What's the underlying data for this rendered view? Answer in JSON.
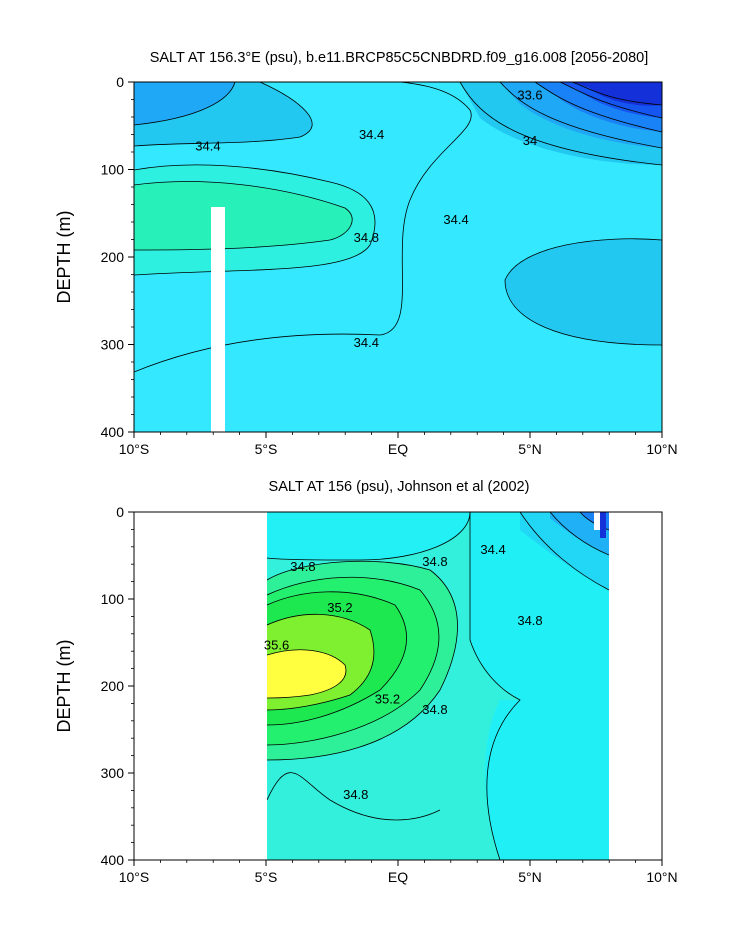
{
  "chart_data": [
    {
      "type": "contour",
      "title": "SALT AT 156.3°E (psu), b.e11.BRCP85C5CNBDRD.f09_g16.008 [2056-2080]",
      "ylabel": "DEPTH (m)",
      "xlabel": "",
      "x_ticks": [
        "10°S",
        "5°S",
        "EQ",
        "5°N",
        "10°N"
      ],
      "x_tick_values": [
        -10,
        -5,
        0,
        5,
        10
      ],
      "y_ticks": [
        "0",
        "100",
        "200",
        "300",
        "400"
      ],
      "y_tick_values": [
        0,
        100,
        200,
        300,
        400
      ],
      "xlim": [
        -10,
        10
      ],
      "ylim": [
        400,
        0
      ],
      "y_inverted": true,
      "contour_labels": [
        {
          "text": "34.4",
          "x": -7.2,
          "y": 78
        },
        {
          "text": "34.4",
          "x": -1.0,
          "y": 65
        },
        {
          "text": "34.8",
          "x": -1.2,
          "y": 183
        },
        {
          "text": "34.4",
          "x": 2.2,
          "y": 162
        },
        {
          "text": "34.4",
          "x": -1.2,
          "y": 303
        },
        {
          "text": "33.6",
          "x": 5.0,
          "y": 20
        },
        {
          "text": "34",
          "x": 5.0,
          "y": 72
        }
      ]
    },
    {
      "type": "contour",
      "title": "SALT AT 156 (psu), Johnson et al (2002)",
      "ylabel": "DEPTH (m)",
      "xlabel": "",
      "x_ticks": [
        "10°S",
        "5°S",
        "EQ",
        "5°N",
        "10°N"
      ],
      "x_tick_values": [
        -10,
        -5,
        0,
        5,
        10
      ],
      "y_ticks": [
        "0",
        "100",
        "200",
        "300",
        "400"
      ],
      "y_tick_values": [
        0,
        100,
        200,
        300,
        400
      ],
      "xlim": [
        -10,
        10
      ],
      "ylim": [
        400,
        0
      ],
      "y_inverted": true,
      "data_extent_x": [
        -5,
        8
      ],
      "contour_labels": [
        {
          "text": "34.8",
          "x": -3.6,
          "y": 68
        },
        {
          "text": "35.2",
          "x": -2.2,
          "y": 115
        },
        {
          "text": "35.6",
          "x": -4.6,
          "y": 158
        },
        {
          "text": "35.2",
          "x": -0.4,
          "y": 220
        },
        {
          "text": "34.8",
          "x": 1.4,
          "y": 232
        },
        {
          "text": "34.8",
          "x": 1.4,
          "y": 62
        },
        {
          "text": "34.4",
          "x": 3.6,
          "y": 48
        },
        {
          "text": "34.8",
          "x": 5.0,
          "y": 130
        },
        {
          "text": "34.8",
          "x": -1.6,
          "y": 330
        }
      ]
    }
  ]
}
